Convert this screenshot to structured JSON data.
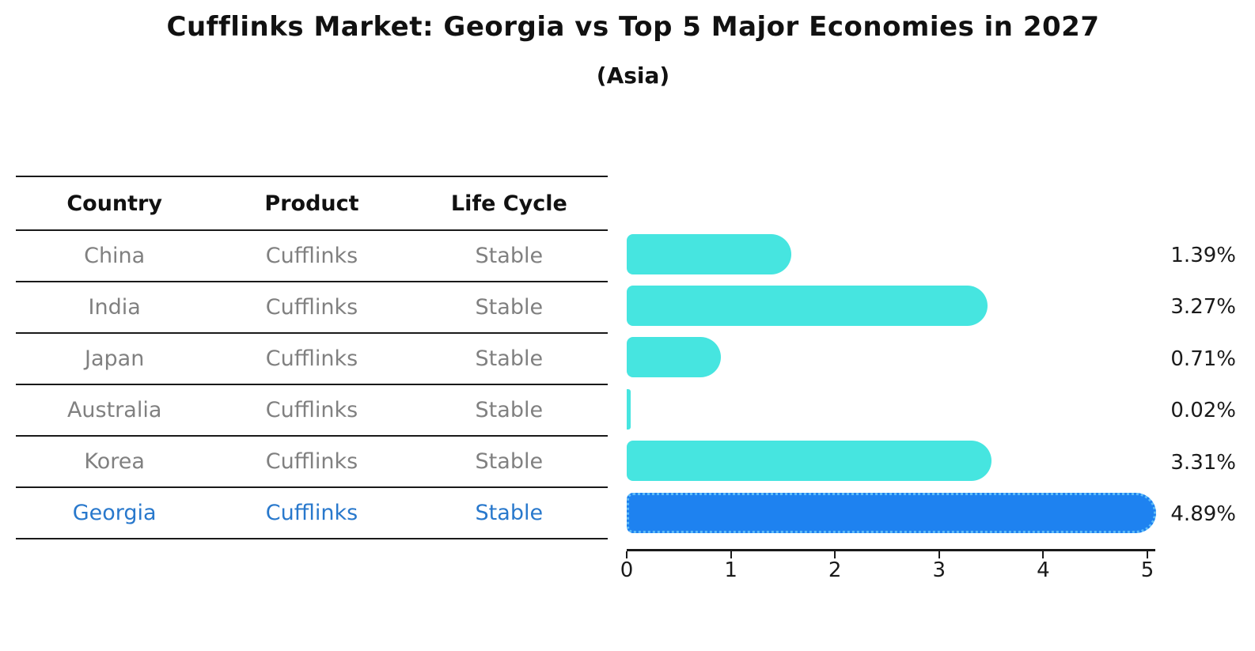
{
  "header": {
    "title": "Cufflinks Market: Georgia vs Top 5 Major Economies in 2027",
    "subtitle": "(Asia)"
  },
  "table": {
    "headers": [
      "Country",
      "Product",
      "Life Cycle"
    ],
    "rows": [
      {
        "country": "China",
        "product": "Cufflinks",
        "life_cycle": "Stable",
        "share": "1.39%",
        "highlight": false
      },
      {
        "country": "India",
        "product": "Cufflinks",
        "life_cycle": "Stable",
        "share": "3.27%",
        "highlight": false
      },
      {
        "country": "Japan",
        "product": "Cufflinks",
        "life_cycle": "Stable",
        "share": "0.71%",
        "highlight": false
      },
      {
        "country": "Australia",
        "product": "Cufflinks",
        "life_cycle": "Stable",
        "share": "0.02%",
        "highlight": false
      },
      {
        "country": "Korea",
        "product": "Cufflinks",
        "life_cycle": "Stable",
        "share": "3.31%",
        "highlight": false
      },
      {
        "country": "Georgia",
        "product": "Cufflinks",
        "life_cycle": "Stable",
        "share": "4.89%",
        "highlight": true
      }
    ]
  },
  "chart_data": {
    "type": "bar",
    "orientation": "horizontal",
    "title": "Cufflinks Market: Georgia vs Top 5 Major Economies in 2027",
    "subtitle": "(Asia)",
    "categories": [
      "China",
      "India",
      "Japan",
      "Australia",
      "Korea",
      "Georgia"
    ],
    "values": [
      1.39,
      3.27,
      0.71,
      0.02,
      3.31,
      4.89
    ],
    "value_labels": [
      "1.39%",
      "3.27%",
      "0.71%",
      "0.02%",
      "3.31%",
      "4.89%"
    ],
    "xlabel": "",
    "ylabel": "",
    "xlim": [
      0,
      5.3
    ],
    "x_ticks": [
      0,
      1,
      2,
      3,
      4,
      5
    ],
    "grid": false,
    "legend": "none",
    "highlight_index": 5,
    "bar_color": "#46E5E0",
    "highlight_color": "#1E82F0",
    "highlight_border_color": "#5FBCF8"
  },
  "colors": {
    "text": "#1a1a1a",
    "muted_text": "#808080",
    "accent_blue_text": "#2878CC"
  }
}
